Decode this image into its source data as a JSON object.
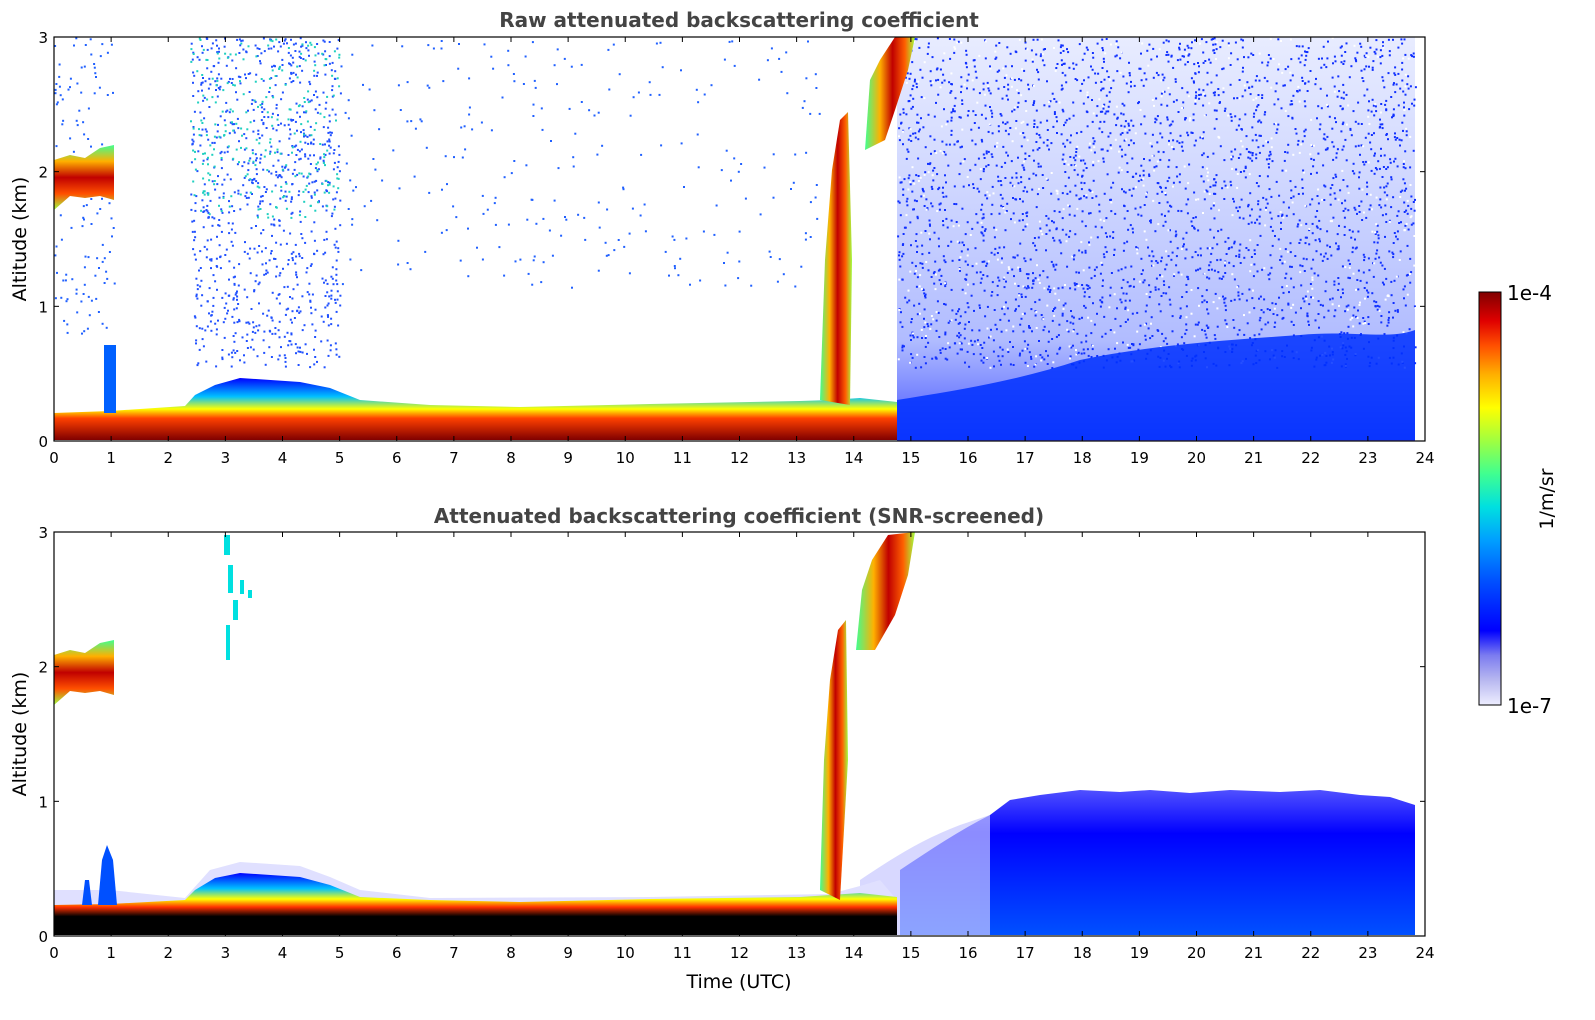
{
  "chart_data": [
    {
      "type": "heatmap",
      "title": "Raw attenuated backscattering coefficient",
      "xlabel": "",
      "ylabel": "Altitude (km)",
      "xlim": [
        0,
        24
      ],
      "ylim": [
        0,
        3
      ],
      "xticks": [
        "0",
        "1",
        "2",
        "3",
        "4",
        "5",
        "6",
        "7",
        "8",
        "9",
        "10",
        "11",
        "12",
        "13",
        "14",
        "15",
        "16",
        "17",
        "18",
        "19",
        "20",
        "21",
        "22",
        "23",
        "24"
      ],
      "yticks": [
        "0",
        "1",
        "2",
        "3"
      ],
      "features": [
        {
          "name": "boundary layer",
          "x_range": [
            0,
            14.5
          ],
          "top_km": 0.25,
          "level": "high"
        },
        {
          "name": "elevated layer",
          "x_range": [
            0,
            1.05
          ],
          "altitude_km": [
            1.7,
            2.2
          ],
          "level": "high"
        },
        {
          "name": "rising plume",
          "x_range": [
            13.5,
            14.8
          ],
          "altitude_km": [
            0.1,
            3.0
          ],
          "level": "high"
        },
        {
          "name": "noise",
          "x_range": [
            2.4,
            23.8
          ],
          "altitude_km": [
            0.5,
            3.0
          ],
          "level": "low"
        }
      ]
    },
    {
      "type": "heatmap",
      "title": "Attenuated backscattering coefficient (SNR-screened)",
      "xlabel": "Time (UTC)",
      "ylabel": "Altitude (km)",
      "xlim": [
        0,
        24
      ],
      "ylim": [
        0,
        3
      ],
      "xticks": [
        "0",
        "1",
        "2",
        "3",
        "4",
        "5",
        "6",
        "7",
        "8",
        "9",
        "10",
        "11",
        "12",
        "13",
        "14",
        "15",
        "16",
        "17",
        "18",
        "19",
        "20",
        "21",
        "22",
        "23",
        "24"
      ],
      "yticks": [
        "0",
        "1",
        "2",
        "3"
      ],
      "features": [
        {
          "name": "boundary layer",
          "x_range": [
            0,
            14.5
          ],
          "top_km": 0.3,
          "level": "very high"
        },
        {
          "name": "elevated layer",
          "x_range": [
            0,
            1.05
          ],
          "altitude_km": [
            1.7,
            2.2
          ],
          "level": "high"
        },
        {
          "name": "rising plume",
          "x_range": [
            13.5,
            15.2
          ],
          "altitude_km": [
            0.1,
            3.0
          ],
          "level": "high"
        },
        {
          "name": "afternoon mixed layer",
          "x_range": [
            14.5,
            23.8
          ],
          "top_km": 1.0,
          "level": "low"
        }
      ]
    }
  ],
  "colorbar": {
    "label": "1/m/sr",
    "max_label": "1e-4",
    "min_label": "1e-7",
    "colormap": "jet with white-lavender low end",
    "colors": [
      "#eeeeff",
      "#b8b8f0",
      "#7c7cf0",
      "#0000ff",
      "#0050ff",
      "#00a0ff",
      "#00e0e0",
      "#40ff90",
      "#a0ff40",
      "#ffff00",
      "#ffb000",
      "#ff5000",
      "#e00000",
      "#800000"
    ]
  }
}
